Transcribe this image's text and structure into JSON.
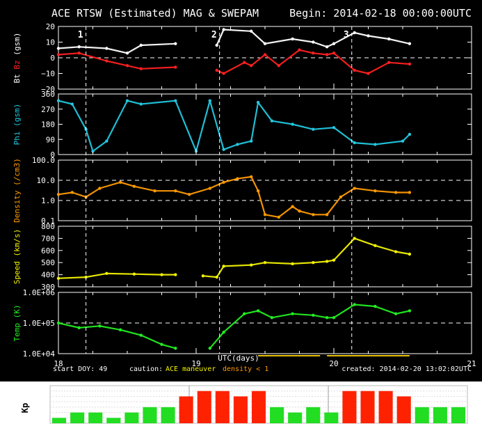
{
  "header": {
    "title": "ACE RTSW (Estimated) MAG & SWEPAM",
    "begin": "Begin: 2014-02-18 00:00:00UTC"
  },
  "markers": [
    {
      "label": "1",
      "day": 18.2
    },
    {
      "label": "2",
      "day": 19.17
    },
    {
      "label": "3",
      "day": 20.13
    }
  ],
  "footer": {
    "start_doy": "start DOY:  49",
    "caution": "caution:",
    "maneuver": "ACE maneuver",
    "density_note": "density < 1",
    "created": "created: 2014-02-20 13:02:02UTC",
    "xlabel": "UTC(days)"
  },
  "colors": {
    "bt": "#ffffff",
    "bz": "#ff2020",
    "phi": "#22c8e0",
    "density": "#ff9a00",
    "speed": "#f2f200",
    "temp": "#22ee22",
    "kp_low": "#22dd22",
    "kp_high": "#ff2200",
    "maneuver": "#e8c000"
  },
  "chart_data": [
    {
      "type": "line",
      "panel": "mag",
      "ylabel_parts": [
        "Bt",
        "Bz",
        "(gsm)"
      ],
      "ylim": [
        -20,
        20
      ],
      "yticks": [
        "20",
        "10",
        "0",
        "−10",
        "−20"
      ],
      "ytick_values": [
        20,
        10,
        0,
        -10,
        -20
      ],
      "dashed_at": [
        0
      ],
      "series": [
        {
          "name": "Bt",
          "x": [
            18.0,
            18.15,
            18.35,
            18.5,
            18.6,
            18.85,
            18.9,
            19.15,
            19.2,
            19.4,
            19.5,
            19.7,
            19.85,
            19.95,
            20.0,
            20.15,
            20.25,
            20.4,
            20.55
          ],
          "y": [
            6,
            7,
            6,
            3,
            8,
            9,
            null,
            8,
            18,
            17,
            9,
            12,
            10,
            7,
            9,
            16,
            14,
            12,
            9
          ]
        },
        {
          "name": "Bz",
          "x": [
            18.0,
            18.15,
            18.35,
            18.5,
            18.6,
            18.85,
            18.9,
            19.15,
            19.2,
            19.35,
            19.4,
            19.5,
            19.6,
            19.75,
            19.85,
            19.95,
            20.0,
            20.15,
            20.25,
            20.4,
            20.55
          ],
          "y": [
            2,
            3,
            -2,
            -5,
            -7,
            -6,
            null,
            -8,
            -10,
            -3,
            -5,
            2,
            -5,
            5,
            3,
            2,
            3,
            -8,
            -10,
            -3,
            -4
          ]
        }
      ]
    },
    {
      "type": "scatter",
      "panel": "phi",
      "ylabel_parts": [
        "Phi",
        "(gsm)"
      ],
      "ylim": [
        0,
        360
      ],
      "yticks": [
        "360",
        "270",
        "180",
        "90",
        "0"
      ],
      "ytick_values": [
        360,
        270,
        180,
        90,
        0
      ],
      "dashed_at": [],
      "series": [
        {
          "name": "Phi",
          "x": [
            18.0,
            18.1,
            18.2,
            18.25,
            18.35,
            18.5,
            18.6,
            18.85,
            19.0,
            19.1,
            19.2,
            19.3,
            19.4,
            19.45,
            19.55,
            19.7,
            19.85,
            20.0,
            20.15,
            20.3,
            20.5,
            20.55
          ],
          "y": [
            320,
            300,
            150,
            20,
            80,
            320,
            300,
            320,
            20,
            320,
            30,
            60,
            80,
            310,
            200,
            180,
            150,
            160,
            70,
            60,
            80,
            120
          ]
        }
      ]
    },
    {
      "type": "scatter",
      "panel": "density",
      "ylabel_parts": [
        "Density",
        "(/cm3)"
      ],
      "yscale": "log",
      "ylim": [
        0.1,
        100
      ],
      "yticks": [
        "100.0",
        "10.0",
        "1.0",
        "0.1"
      ],
      "ytick_values": [
        100,
        10,
        1,
        0.1
      ],
      "dashed_at": [
        10,
        1
      ],
      "series": [
        {
          "name": "Density",
          "x": [
            18.0,
            18.1,
            18.2,
            18.3,
            18.45,
            18.55,
            18.7,
            18.85,
            18.95,
            19.1,
            19.2,
            19.3,
            19.4,
            19.45,
            19.5,
            19.6,
            19.7,
            19.75,
            19.85,
            19.95,
            20.05,
            20.15,
            20.3,
            20.45,
            20.55
          ],
          "y": [
            2.0,
            2.5,
            1.5,
            4.0,
            8.0,
            5.0,
            3.0,
            3.0,
            2.0,
            4.0,
            8.0,
            12.0,
            15.0,
            3.0,
            0.2,
            0.15,
            0.5,
            0.3,
            0.2,
            0.2,
            1.5,
            4.0,
            3.0,
            2.5,
            2.5
          ]
        }
      ]
    },
    {
      "type": "scatter",
      "panel": "speed",
      "ylabel_parts": [
        "Speed",
        "(km/s)"
      ],
      "ylim": [
        300,
        800
      ],
      "yticks": [
        "800",
        "700",
        "600",
        "500",
        "400",
        "300"
      ],
      "ytick_values": [
        800,
        700,
        600,
        500,
        400,
        300
      ],
      "dashed_at": [],
      "series": [
        {
          "name": "Speed",
          "x": [
            18.0,
            18.2,
            18.35,
            18.55,
            18.75,
            18.85,
            18.9,
            19.05,
            19.15,
            19.2,
            19.4,
            19.5,
            19.7,
            19.85,
            19.95,
            20.0,
            20.15,
            20.3,
            20.45,
            20.55
          ],
          "y": [
            370,
            380,
            410,
            405,
            400,
            400,
            null,
            390,
            380,
            470,
            480,
            500,
            490,
            500,
            510,
            520,
            700,
            640,
            590,
            570
          ]
        }
      ]
    },
    {
      "type": "scatter",
      "panel": "temp",
      "ylabel_parts": [
        "Temp",
        "(K)"
      ],
      "yscale": "log",
      "ylim": [
        10000,
        1000000
      ],
      "yticks": [
        "1.0E+06",
        "1.0E+05",
        "1.0E+04"
      ],
      "ytick_values": [
        1000000,
        100000,
        10000
      ],
      "dashed_at": [
        100000
      ],
      "series": [
        {
          "name": "Temp",
          "x": [
            18.0,
            18.15,
            18.3,
            18.45,
            18.6,
            18.75,
            18.85,
            18.9,
            19.1,
            19.2,
            19.35,
            19.45,
            19.55,
            19.7,
            19.85,
            19.95,
            20.0,
            20.15,
            20.3,
            20.45,
            20.55
          ],
          "y": [
            100000,
            70000,
            80000,
            60000,
            40000,
            20000,
            15000,
            null,
            15000,
            50000,
            200000,
            250000,
            150000,
            200000,
            180000,
            150000,
            150000,
            400000,
            350000,
            200000,
            250000
          ]
        }
      ]
    },
    {
      "type": "bar",
      "panel": "kp",
      "ylabel": "Kp",
      "values": [
        1,
        2,
        2,
        1,
        2,
        3,
        3,
        5,
        6,
        6,
        5,
        6,
        3,
        2,
        3,
        2,
        6,
        6,
        6,
        5,
        3,
        3,
        3
      ],
      "high_threshold": 4,
      "ymax": 7
    }
  ],
  "xaxis": {
    "xlim": [
      18,
      21
    ],
    "ticks": [
      {
        "v": 18,
        "label": "18"
      },
      {
        "v": 19,
        "label": "19"
      },
      {
        "v": 20,
        "label": "20"
      },
      {
        "v": 21,
        "label": "21"
      }
    ]
  }
}
